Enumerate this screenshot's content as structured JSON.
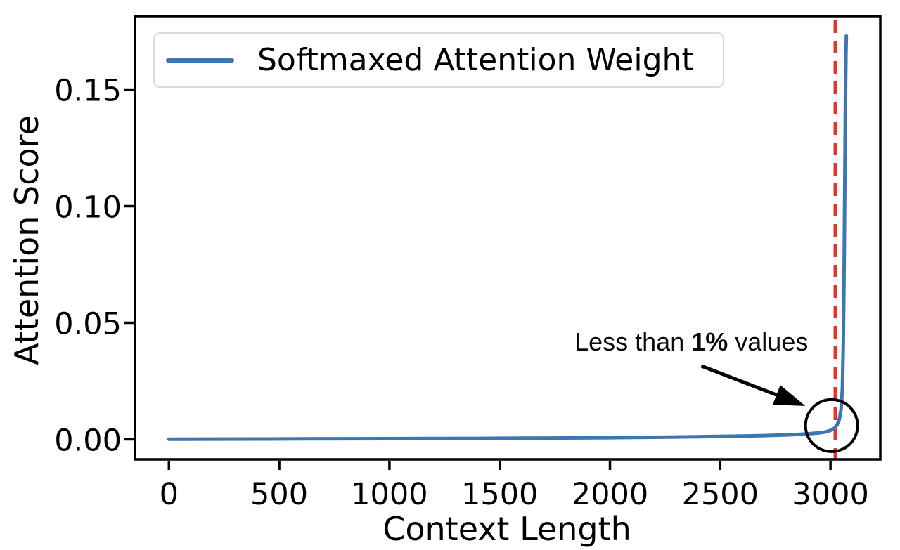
{
  "figure": {
    "background": "#ffffff"
  },
  "chart_data": {
    "type": "line",
    "title": "",
    "xlabel": "Context Length",
    "ylabel": "Attention Score",
    "xlim": [
      -154,
      3226
    ],
    "ylim": [
      -0.0086,
      0.1815
    ],
    "grid": false,
    "legend_position": "upper left",
    "axis_color": "#000000",
    "x_ticks": {
      "values": [
        0,
        500,
        1000,
        1500,
        2000,
        2500,
        3000
      ],
      "labels": [
        "0",
        "500",
        "1000",
        "1500",
        "2000",
        "2500",
        "3000"
      ]
    },
    "y_ticks": {
      "values": [
        0.0,
        0.05,
        0.1,
        0.15
      ],
      "labels": [
        "0.00",
        "0.05",
        "0.10",
        "0.15"
      ]
    },
    "series": [
      {
        "name": "Softmaxed Attention Weight",
        "color": "#3d76b1",
        "x": [
          0,
          200,
          400,
          600,
          800,
          1000,
          1200,
          1400,
          1600,
          1800,
          2000,
          2200,
          2400,
          2600,
          2700,
          2800,
          2850,
          2900,
          2950,
          2980,
          3000,
          3010,
          3020,
          3030,
          3040,
          3048,
          3054,
          3058,
          3062,
          3065,
          3068,
          3070,
          3072
        ],
        "y": [
          5e-05,
          0.0001,
          0.00015,
          0.0002,
          0.00025,
          0.0003,
          0.00035,
          0.0004,
          0.0005,
          0.0006,
          0.0007,
          0.0009,
          0.0011,
          0.0014,
          0.0016,
          0.0019,
          0.0021,
          0.0024,
          0.0028,
          0.0032,
          0.0038,
          0.0043,
          0.005,
          0.0062,
          0.0085,
          0.013,
          0.022,
          0.04,
          0.075,
          0.11,
          0.145,
          0.165,
          0.173
        ]
      }
    ],
    "annotations": {
      "label_prefix": "Less than ",
      "label_bold": "1%",
      "label_suffix": " values",
      "label_x": 2369,
      "label_y": 0.0417,
      "arrow": {
        "from_x": 2414,
        "from_y": 0.0315,
        "to_x": 2886,
        "to_y": 0.0143
      },
      "circle": {
        "x": 3005,
        "y": 0.0059,
        "radius_px": 37
      },
      "vline_x": 3022,
      "vline_color": "#e5352a"
    }
  }
}
